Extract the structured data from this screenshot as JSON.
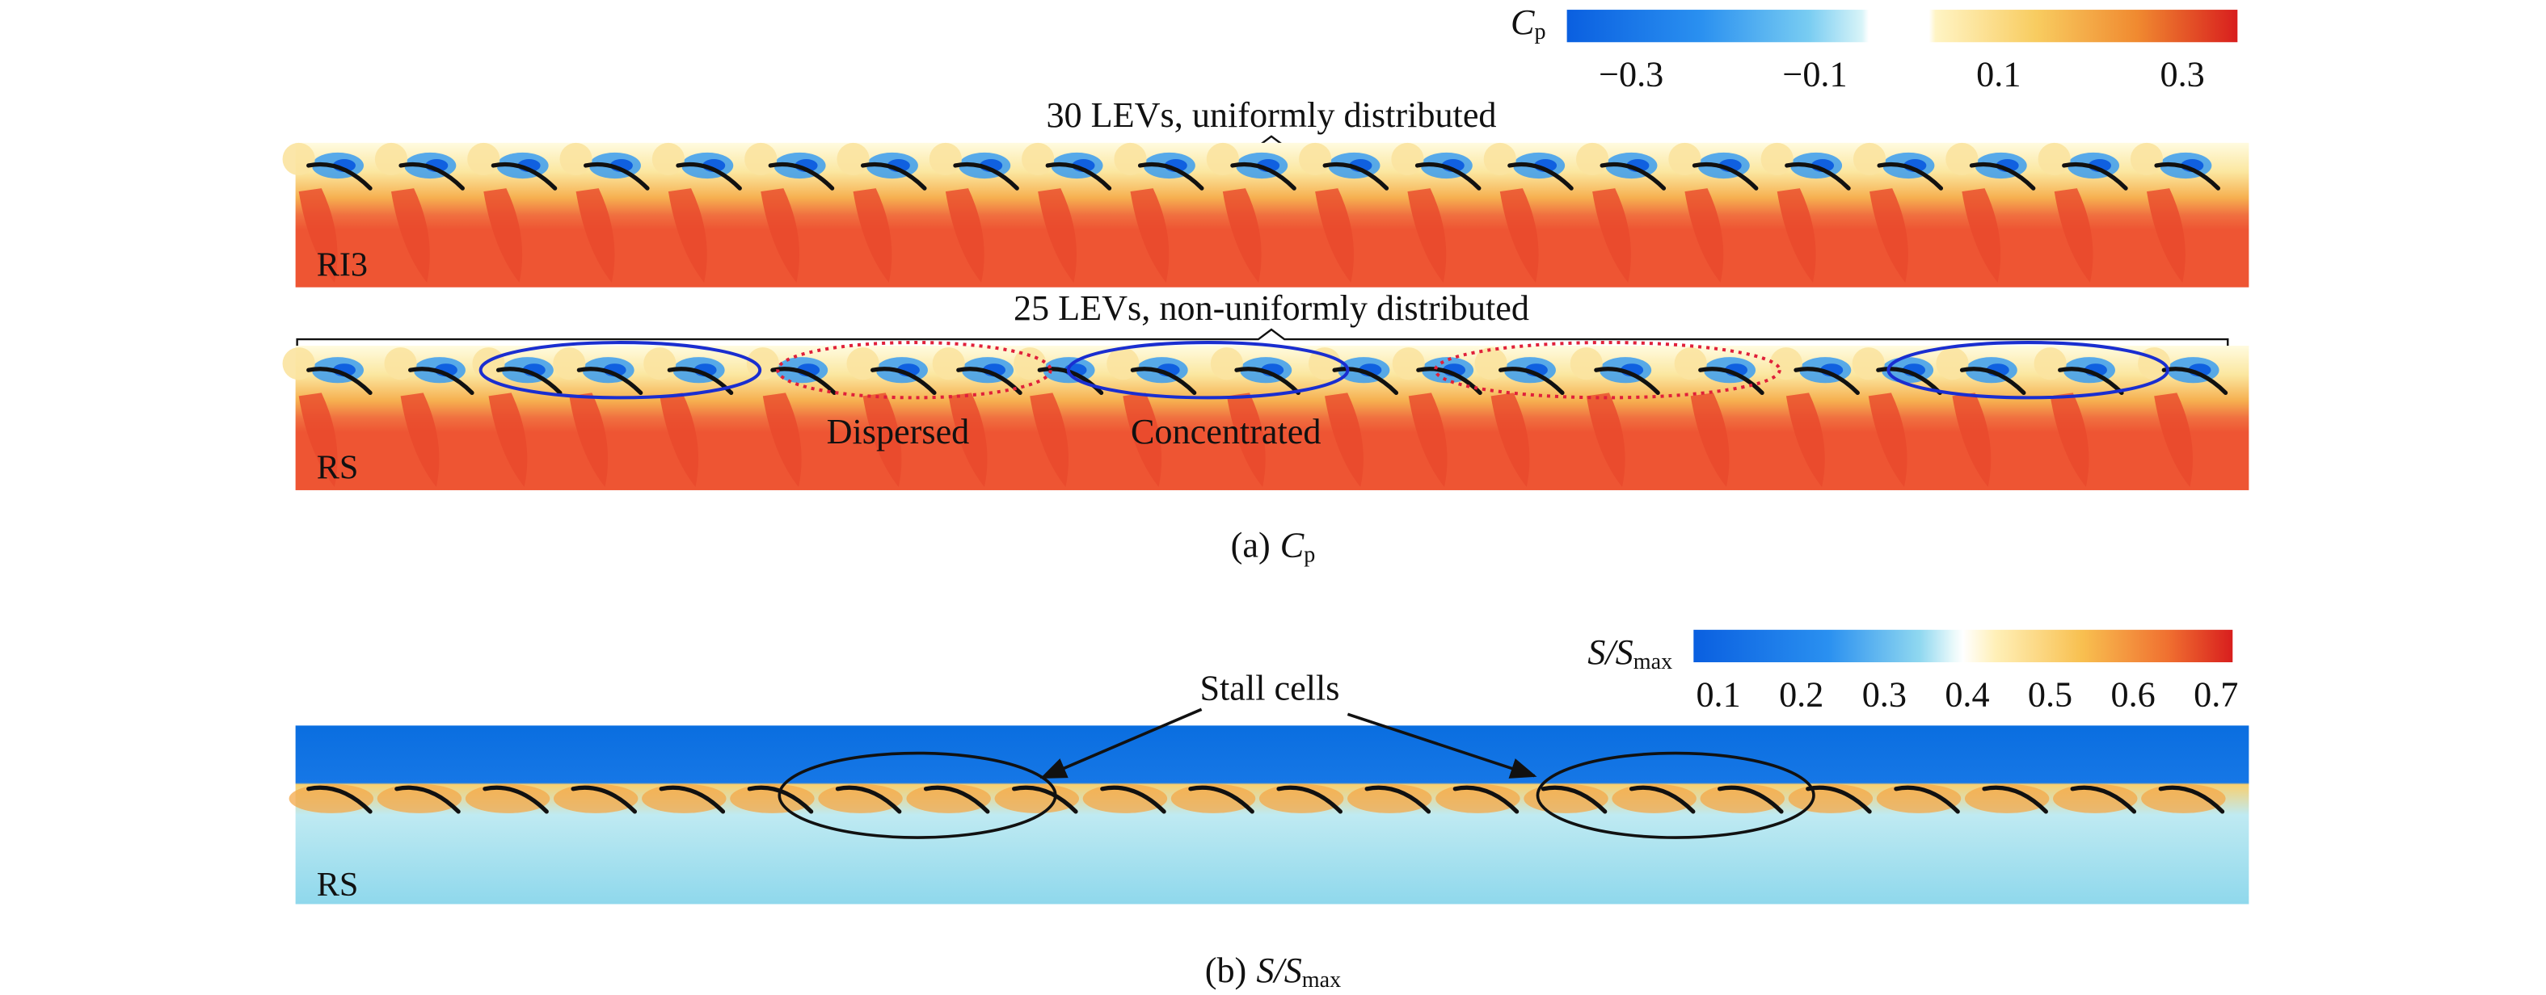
{
  "colorbar_cp": {
    "label": {
      "main": "C",
      "sub": "p"
    },
    "lim": [
      -0.37,
      0.36
    ],
    "ticks": [
      {
        "value": -0.3,
        "label": "−0.3"
      },
      {
        "value": -0.1,
        "label": "−0.1"
      },
      0.1,
      0.3
    ]
  },
  "panel_a": {
    "ri3": {
      "annotation": "30 LEVs, uniformly distributed",
      "label": "RI3"
    },
    "rs": {
      "annotation": "25 LEVs, non-uniformly distributed",
      "label": "RS",
      "regions": [
        "Dispersed",
        "Concentrated"
      ]
    },
    "caption": {
      "prefix": "(a)",
      "main": "C",
      "sub": "p"
    }
  },
  "colorbar_s": {
    "label": {
      "main": "S/S",
      "sub": "max"
    },
    "lim": [
      0.07,
      0.72
    ],
    "ticks": [
      0.1,
      0.2,
      0.3,
      0.4,
      0.5,
      0.6,
      0.7
    ]
  },
  "panel_b": {
    "annotation": "Stall cells",
    "label": "RS",
    "caption": {
      "prefix": "(b)",
      "main": "S/S",
      "sub": "max"
    }
  }
}
